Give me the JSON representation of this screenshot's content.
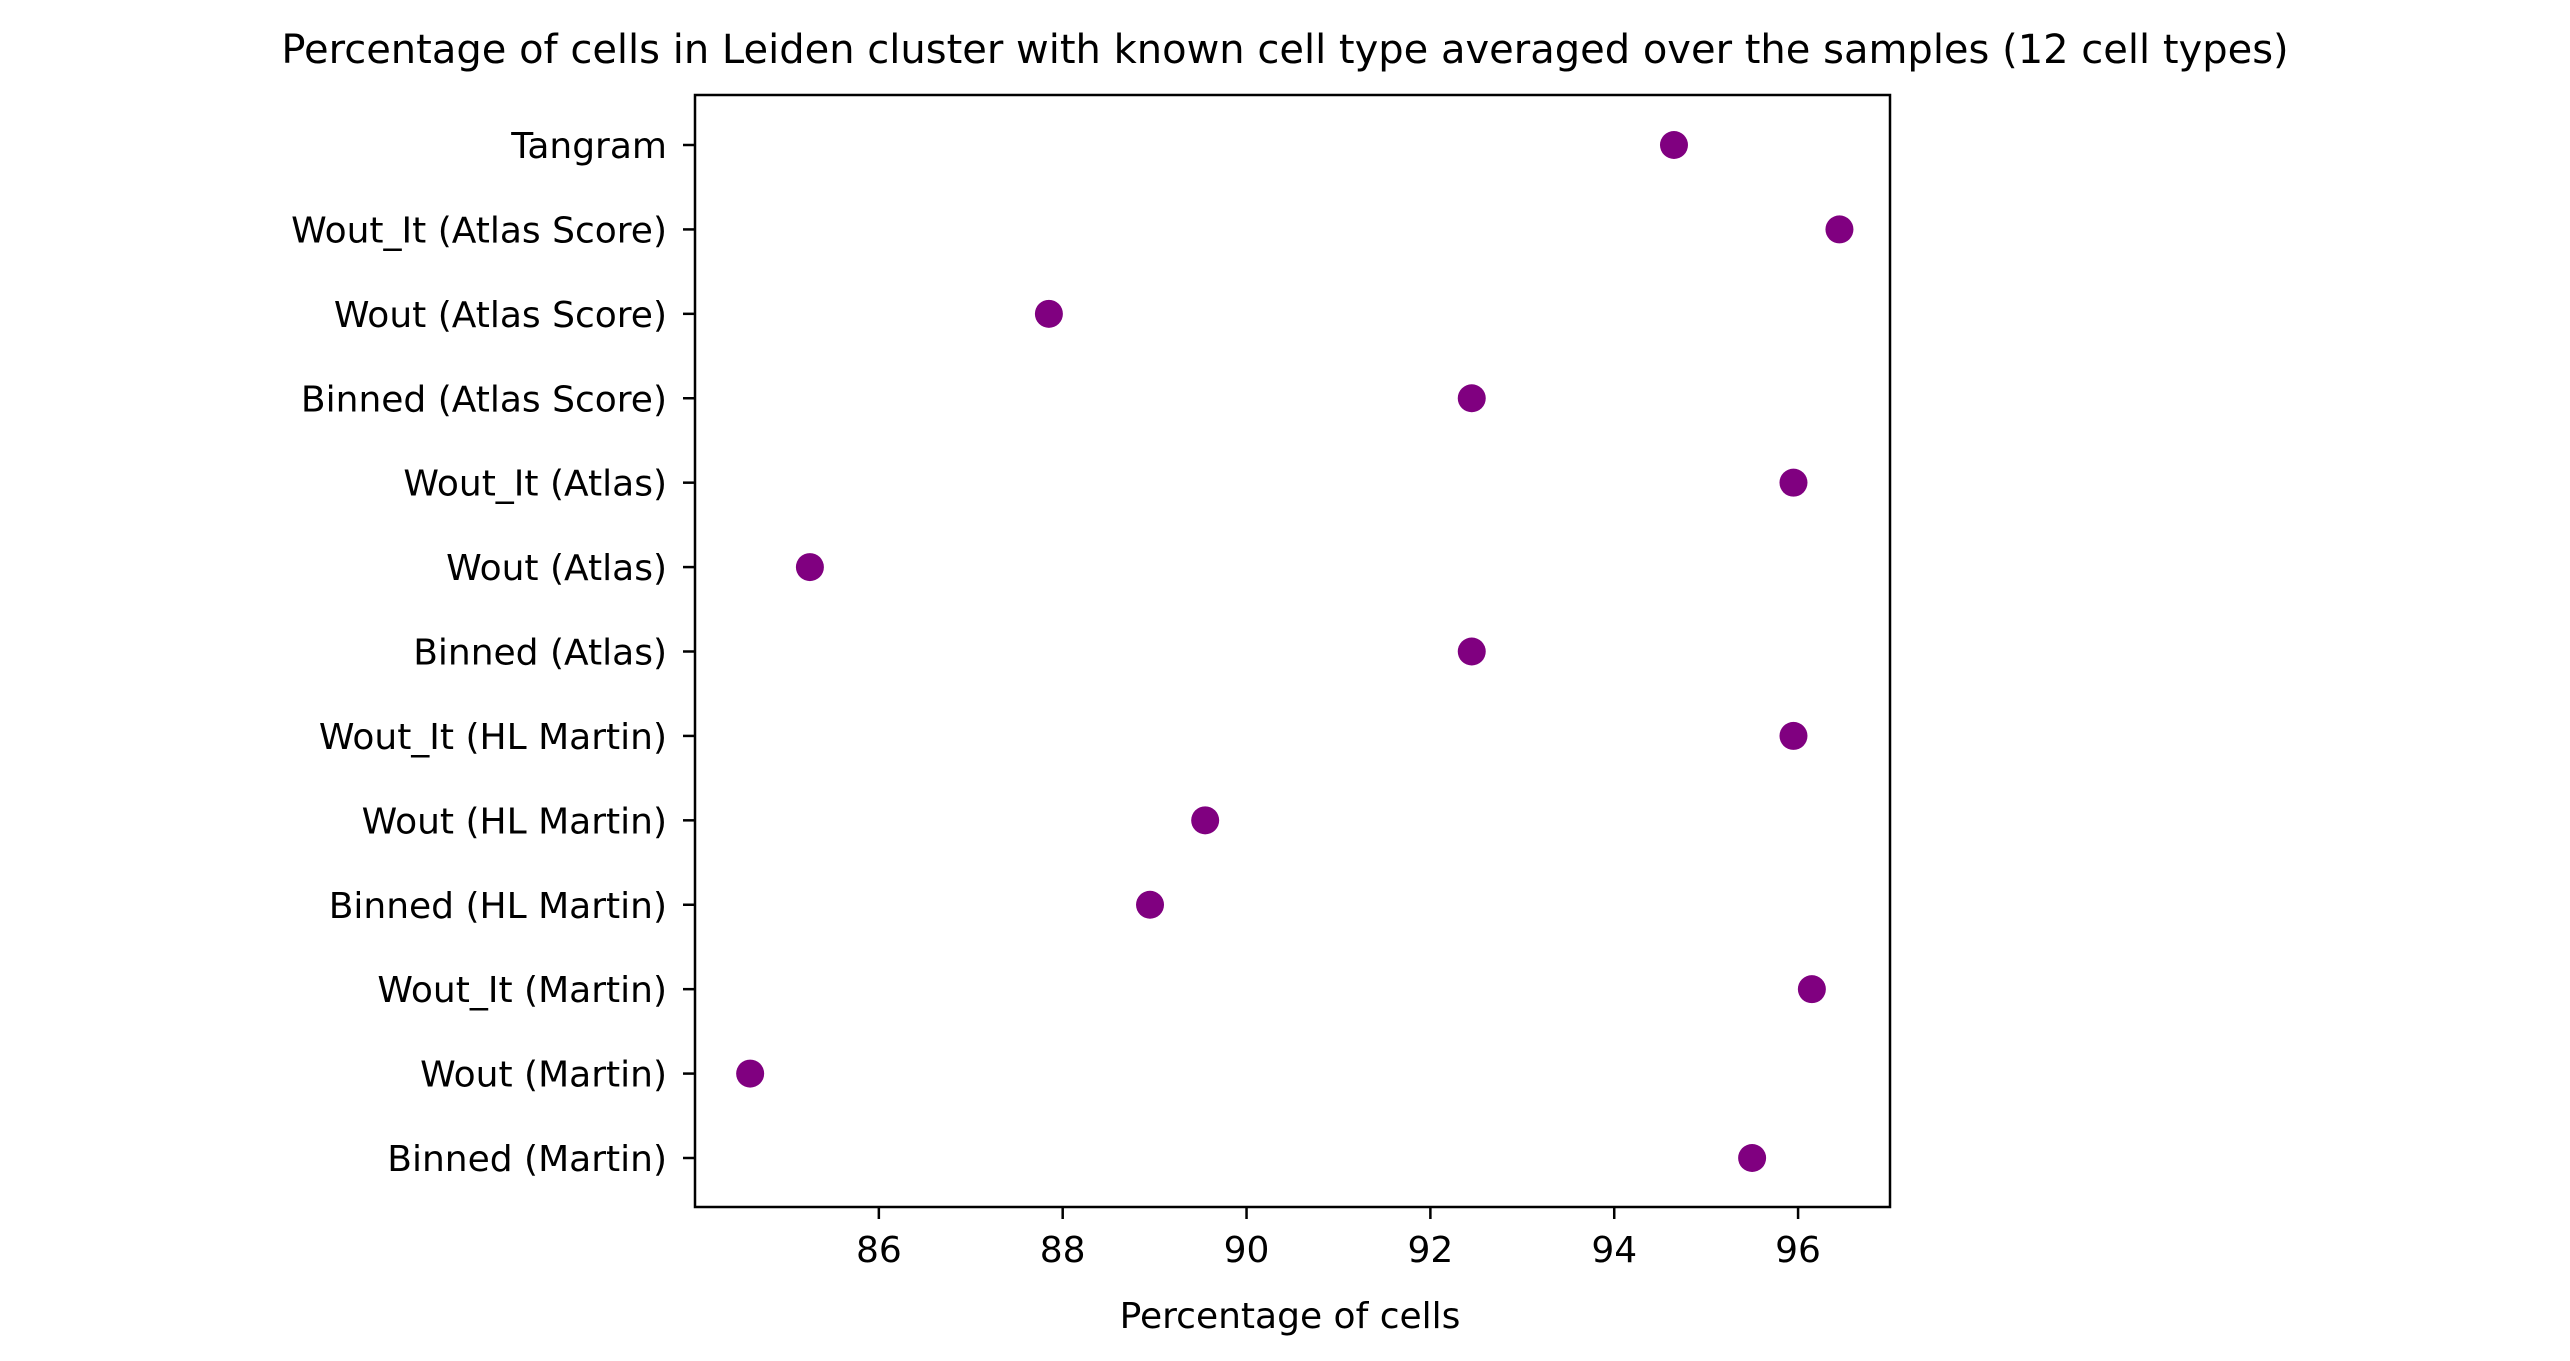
{
  "chart_data": {
    "type": "scatter",
    "title": "Percentage of cells in Leiden cluster with known cell type averaged over the samples (12 cell types)",
    "xlabel": "Percentage of cells",
    "ylabel": "",
    "xlim": [
      84.0,
      97.0
    ],
    "xticks": [
      86,
      88,
      90,
      92,
      94,
      96
    ],
    "xtick_labels": [
      "86",
      "88",
      "90",
      "92",
      "94",
      "96"
    ],
    "grid": false,
    "legend": false,
    "marker_color": "#800080",
    "categories": [
      "Binned (Martin)",
      "Wout (Martin)",
      "Wout_It (Martin)",
      "Binned (HL Martin)",
      "Wout (HL Martin)",
      "Wout_It (HL Martin)",
      "Binned (Atlas)",
      "Wout (Atlas)",
      "Wout_It (Atlas)",
      "Binned (Atlas Score)",
      "Wout (Atlas Score)",
      "Wout_It (Atlas Score)",
      "Tangram"
    ],
    "values": [
      95.5,
      84.6,
      96.15,
      88.95,
      89.55,
      95.95,
      92.45,
      85.25,
      95.95,
      92.45,
      87.85,
      96.45,
      94.65
    ]
  }
}
